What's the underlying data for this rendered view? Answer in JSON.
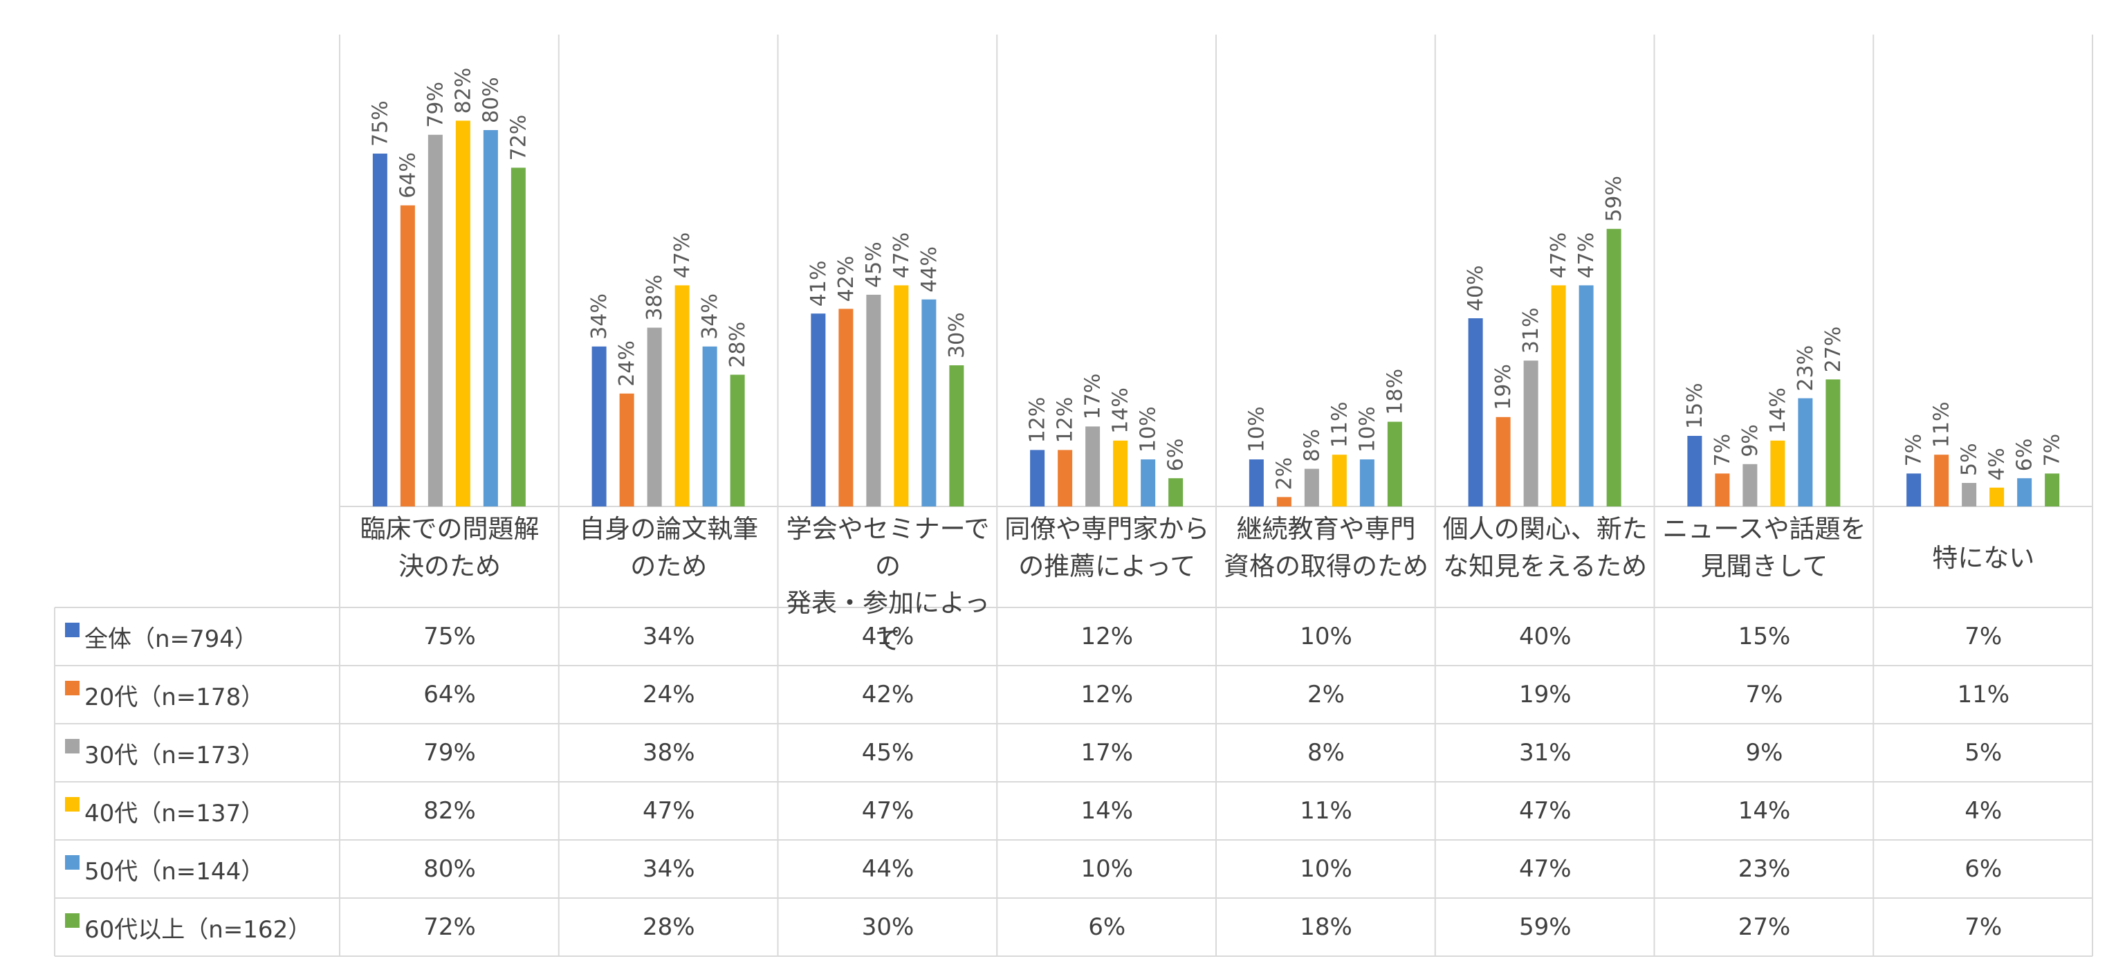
{
  "chart_data": {
    "type": "bar",
    "title": "",
    "xlabel": "",
    "ylabel": "",
    "ylim": [
      0,
      100
    ],
    "grid": false,
    "legend": "data-table",
    "categories": [
      [
        "臨床での問題解",
        "決のため"
      ],
      [
        "自身の論文執筆",
        "のため"
      ],
      [
        "学会やセミナーでの",
        "発表・参加によって"
      ],
      [
        "同僚や専門家から",
        "の推薦によって"
      ],
      [
        "継続教育や専門",
        "資格の取得のため"
      ],
      [
        "個人の関心、新た",
        "な知見をえるため"
      ],
      [
        "ニュースや話題を",
        "見聞きして"
      ],
      [
        "特にない"
      ]
    ],
    "series": [
      {
        "name": "全体（n=794）",
        "color": "#4472C4",
        "values": [
          75,
          34,
          41,
          12,
          10,
          40,
          15,
          7
        ]
      },
      {
        "name": "20代（n=178）",
        "color": "#ED7D31",
        "values": [
          64,
          24,
          42,
          12,
          2,
          19,
          7,
          11
        ]
      },
      {
        "name": "30代（n=173）",
        "color": "#A5A5A5",
        "values": [
          79,
          38,
          45,
          17,
          8,
          31,
          9,
          5
        ]
      },
      {
        "name": "40代（n=137）",
        "color": "#FFC000",
        "values": [
          82,
          47,
          47,
          14,
          11,
          47,
          14,
          4
        ]
      },
      {
        "name": "50代（n=144）",
        "color": "#5B9BD5",
        "values": [
          80,
          34,
          44,
          10,
          10,
          47,
          23,
          6
        ]
      },
      {
        "name": "60代以上（n=162）",
        "color": "#70AD47",
        "values": [
          72,
          28,
          30,
          6,
          18,
          59,
          27,
          7
        ]
      }
    ],
    "value_suffix": "%"
  }
}
